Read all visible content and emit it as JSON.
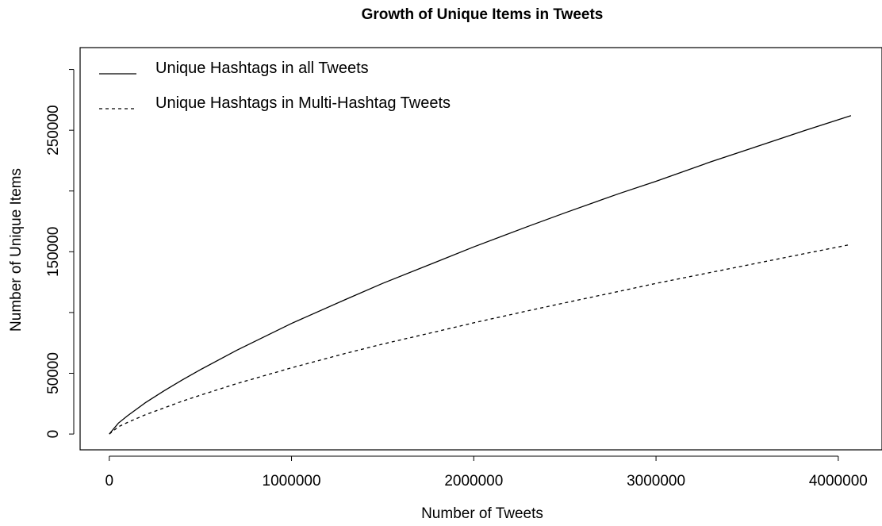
{
  "chart_data": {
    "type": "line",
    "title": "Growth of Unique Items in Tweets",
    "xlabel": "Number of Tweets",
    "ylabel": "Number of Unique Items",
    "xlim": [
      -160000,
      4240000
    ],
    "ylim": [
      -13000,
      318000
    ],
    "x_ticks": [
      0,
      1000000,
      2000000,
      3000000,
      4000000
    ],
    "x_tick_labels": [
      "0",
      "1000000",
      "2000000",
      "3000000",
      "4000000"
    ],
    "y_ticks": [
      0,
      50000,
      100000,
      150000,
      200000,
      250000,
      300000
    ],
    "y_tick_labels": [
      "0",
      "50000",
      "",
      "150000",
      "",
      "250000",
      ""
    ],
    "legend_position": "top-left",
    "grid": false,
    "series": [
      {
        "name": "Unique Hashtags in all Tweets",
        "line_style": "solid",
        "color": "#000000",
        "x": [
          0,
          50000,
          100000,
          200000,
          300000,
          400000,
          500000,
          700000,
          1000000,
          1300000,
          1500000,
          1800000,
          2000000,
          2300000,
          2500000,
          2800000,
          3000000,
          3300000,
          3500000,
          3800000,
          4070000
        ],
        "y": [
          0,
          9000,
          15000,
          26000,
          35500,
          44500,
          53000,
          69000,
          91000,
          111000,
          124000,
          142000,
          154000,
          171000,
          182000,
          198000,
          208000,
          224000,
          234000,
          249000,
          262000
        ]
      },
      {
        "name": "Unique Hashtags in Multi-Hashtag Tweets",
        "line_style": "dashed",
        "color": "#000000",
        "x": [
          0,
          50000,
          100000,
          200000,
          300000,
          400000,
          500000,
          700000,
          1000000,
          1300000,
          1500000,
          1800000,
          2000000,
          2300000,
          2500000,
          2800000,
          3000000,
          3300000,
          3500000,
          3800000,
          4070000
        ],
        "y": [
          0,
          6000,
          9500,
          16000,
          21500,
          27000,
          32000,
          41500,
          54500,
          66500,
          74000,
          84500,
          91500,
          101500,
          108000,
          117500,
          124000,
          133000,
          139000,
          148000,
          156000
        ]
      }
    ]
  }
}
